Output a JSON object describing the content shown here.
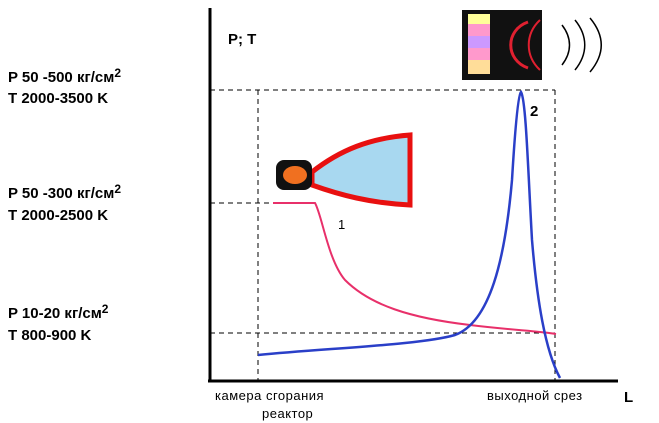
{
  "axis": {
    "y_label": "P; T",
    "x_label": "L"
  },
  "levels": [
    {
      "pressure": {
        "text": "P  50 -500 кг/см",
        "sup": "2"
      },
      "temperature": "T  2000-3500 K"
    },
    {
      "pressure": {
        "text": "P  50 -300 кг/см",
        "sup": "2"
      },
      "temperature": "T  2000-2500 K"
    },
    {
      "pressure": {
        "text": "P 10-20   кг/см",
        "sup": "2"
      },
      "temperature": "T  800-900  K"
    }
  ],
  "x_labels": {
    "start_line1": "камера сгорания",
    "start_line2": "реактор",
    "end": "выходной срез"
  },
  "curves": [
    {
      "label": "1"
    },
    {
      "label": "2"
    }
  ]
}
